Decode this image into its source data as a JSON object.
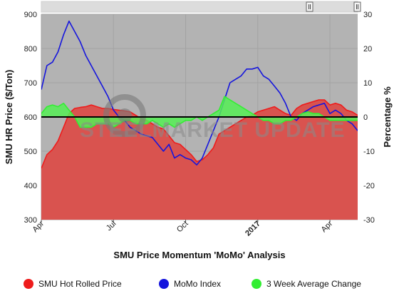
{
  "chart_data": {
    "type": "area",
    "title": "SMU Price Momentum 'MoMo' Analysis",
    "left_axis": {
      "label": "SMU HR Price ($/Ton)",
      "ylim": [
        300,
        900
      ],
      "ticks": [
        "300",
        "400",
        "500",
        "600",
        "700",
        "800",
        "900"
      ]
    },
    "right_axis": {
      "label": "Percentage %",
      "ylim": [
        -30,
        30
      ],
      "ticks": [
        "-30",
        "-20",
        "-10",
        "0",
        "10",
        "20",
        "30"
      ]
    },
    "x_ticks": [
      "Apr",
      "Jul",
      "Oct",
      "2017",
      "Apr"
    ],
    "x_tick_positions": [
      0,
      13,
      26,
      39,
      52
    ],
    "x_range": [
      0,
      57
    ],
    "watermark": "STEELMARKET UPDATE",
    "background_color": "#b3b3b3",
    "series": [
      {
        "name": "SMU Hot Rolled Price",
        "axis": "left",
        "color": "#ee1c1c",
        "fill": "#d9534f",
        "x": [
          0,
          1,
          2,
          3,
          4,
          5,
          6,
          7,
          8,
          9,
          10,
          11,
          12,
          13,
          14,
          15,
          16,
          17,
          18,
          19,
          20,
          21,
          22,
          23,
          24,
          25,
          26,
          27,
          28,
          29,
          30,
          31,
          32,
          33,
          34,
          35,
          36,
          37,
          38,
          39,
          40,
          41,
          42,
          43,
          44,
          45,
          46,
          47,
          48,
          49,
          50,
          51,
          52,
          53,
          54,
          55,
          56,
          57
        ],
        "values": [
          450,
          490,
          505,
          530,
          570,
          610,
          625,
          628,
          630,
          635,
          630,
          625,
          625,
          622,
          620,
          618,
          615,
          605,
          595,
          590,
          580,
          570,
          565,
          545,
          525,
          520,
          505,
          490,
          470,
          475,
          490,
          510,
          550,
          560,
          570,
          580,
          590,
          600,
          605,
          615,
          620,
          625,
          630,
          620,
          610,
          605,
          625,
          635,
          640,
          645,
          650,
          650,
          635,
          640,
          635,
          620,
          615,
          605
        ]
      },
      {
        "name": "MoMo Index",
        "axis": "right",
        "color": "#1515dd",
        "x": [
          0,
          1,
          2,
          3,
          4,
          5,
          6,
          7,
          8,
          9,
          10,
          11,
          12,
          13,
          14,
          15,
          16,
          17,
          18,
          19,
          20,
          21,
          22,
          23,
          24,
          25,
          26,
          27,
          28,
          29,
          30,
          31,
          32,
          33,
          34,
          35,
          36,
          37,
          38,
          39,
          40,
          41,
          42,
          43,
          44,
          45,
          46,
          47,
          48,
          49,
          50,
          51,
          52,
          53,
          54,
          55,
          56,
          57
        ],
        "values": [
          8,
          15,
          16,
          19,
          24,
          28,
          25,
          22,
          18,
          15,
          12,
          9,
          6,
          2,
          0,
          -1,
          -3,
          -4,
          -5,
          -5.5,
          -6,
          -8,
          -10,
          -8,
          -12,
          -11,
          -12,
          -12.5,
          -14,
          -12,
          -8,
          -4,
          0,
          5,
          10,
          11,
          12,
          14,
          14,
          14.5,
          12,
          11,
          9,
          7,
          4,
          0,
          -1,
          1,
          2,
          3,
          3.5,
          4,
          1,
          2,
          1,
          -1,
          -2,
          -4
        ]
      },
      {
        "name": "3 Week Average Change",
        "axis": "right",
        "color": "#33ee33",
        "fill": "#55ee55",
        "x": [
          0,
          1,
          2,
          3,
          4,
          5,
          6,
          7,
          8,
          9,
          10,
          11,
          12,
          13,
          14,
          15,
          16,
          17,
          18,
          19,
          20,
          21,
          22,
          23,
          24,
          25,
          26,
          27,
          28,
          29,
          30,
          31,
          32,
          33,
          34,
          35,
          36,
          37,
          38,
          39,
          40,
          41,
          42,
          43,
          44,
          45,
          46,
          47,
          48,
          49,
          50,
          51,
          52,
          53,
          54,
          55,
          56,
          57
        ],
        "values": [
          1,
          3,
          3.5,
          3,
          4,
          2,
          0,
          -3,
          -3,
          -3,
          -2,
          -2,
          -2,
          -3,
          -2,
          -1,
          -1,
          -2,
          -2,
          -2,
          -1,
          -2,
          -3,
          -2,
          -3,
          -2,
          -1,
          -1,
          0,
          -1,
          0,
          1,
          2,
          6,
          5,
          4,
          3,
          2,
          1,
          0,
          -1,
          -1,
          -2,
          -2,
          -1,
          -1,
          0,
          1,
          1.5,
          1,
          1,
          0,
          -1,
          -1,
          -1,
          -1,
          -1,
          -1
        ]
      }
    ],
    "legend": {
      "placement": "bottom"
    }
  }
}
